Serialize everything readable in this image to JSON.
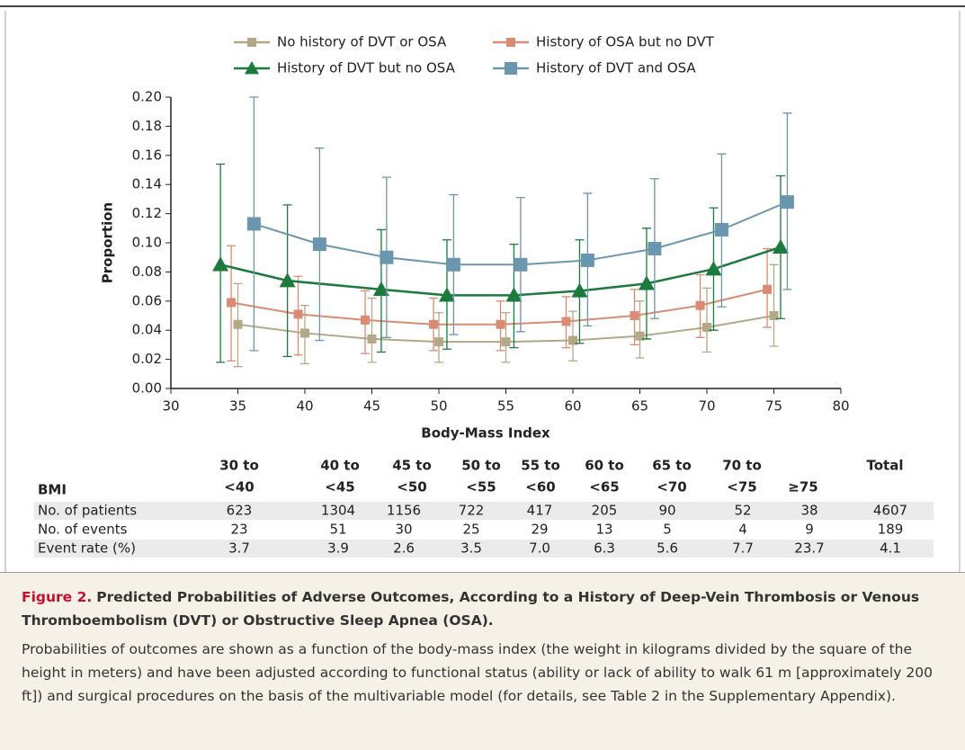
{
  "chart_data": {
    "type": "line",
    "x_label": "Body-Mass Index",
    "y_label": "Proportion",
    "xlim": [
      30,
      80
    ],
    "xticks": [
      30,
      35,
      40,
      45,
      50,
      55,
      60,
      65,
      70,
      75,
      80
    ],
    "ylim": [
      0,
      0.2
    ],
    "yticks": [
      {
        "value": 0,
        "label": "0.00"
      },
      {
        "value": 0.02,
        "label": "0.02"
      },
      {
        "value": 0.04,
        "label": "0.04"
      },
      {
        "value": 0.06,
        "label": "0.06"
      },
      {
        "value": 0.08,
        "label": "0.08"
      },
      {
        "value": 0.1,
        "label": "0.10"
      },
      {
        "value": 0.12,
        "label": "0.12"
      },
      {
        "value": 0.14,
        "label": "0.14"
      },
      {
        "value": 0.16,
        "label": "0.16"
      },
      {
        "value": 0.18,
        "label": "0.18"
      },
      {
        "value": 0.2,
        "label": "0.20"
      }
    ],
    "legend": "top",
    "grid": false,
    "series": [
      {
        "name": "No history of DVT or OSA",
        "color": "#b3a887",
        "marker": "square",
        "x": [
          35,
          40,
          45,
          50,
          55,
          60,
          65,
          70,
          75
        ],
        "values": [
          0.044,
          0.038,
          0.034,
          0.032,
          0.032,
          0.033,
          0.036,
          0.042,
          0.05
        ],
        "lower": [
          0.015,
          0.017,
          0.018,
          0.018,
          0.018,
          0.019,
          0.021,
          0.025,
          0.029
        ],
        "upper": [
          0.072,
          0.057,
          0.062,
          0.052,
          0.052,
          0.053,
          0.06,
          0.069,
          0.085
        ]
      },
      {
        "name": "History of OSA but no DVT",
        "color": "#d98c73",
        "marker": "square",
        "x": [
          34.5,
          39.5,
          44.5,
          49.6,
          54.6,
          59.5,
          64.6,
          69.5,
          74.5
        ],
        "values": [
          0.059,
          0.051,
          0.047,
          0.044,
          0.044,
          0.046,
          0.05,
          0.057,
          0.068
        ],
        "lower": [
          0.019,
          0.023,
          0.024,
          0.026,
          0.026,
          0.028,
          0.03,
          0.035,
          0.042
        ],
        "upper": [
          0.098,
          0.077,
          0.067,
          0.062,
          0.06,
          0.063,
          0.068,
          0.078,
          0.096
        ]
      },
      {
        "name": "History of DVT but no OSA",
        "color": "#1b7a3c",
        "marker": "triangle",
        "x": [
          33.7,
          38.7,
          45.7,
          50.6,
          55.6,
          60.5,
          65.5,
          70.5,
          75.5
        ],
        "values": [
          0.085,
          0.074,
          0.068,
          0.064,
          0.064,
          0.067,
          0.072,
          0.082,
          0.097
        ],
        "lower": [
          0.018,
          0.022,
          0.025,
          0.027,
          0.028,
          0.031,
          0.034,
          0.04,
          0.048
        ],
        "upper": [
          0.154,
          0.126,
          0.109,
          0.102,
          0.099,
          0.102,
          0.11,
          0.124,
          0.146
        ]
      },
      {
        "name": "History of DVT and OSA",
        "color": "#6b96b0",
        "marker": "square",
        "x": [
          36.2,
          41.1,
          46.1,
          51.1,
          56.1,
          61.1,
          66.1,
          71.1,
          76
        ],
        "values": [
          0.113,
          0.099,
          0.09,
          0.085,
          0.085,
          0.088,
          0.096,
          0.109,
          0.128
        ],
        "lower": [
          0.026,
          0.033,
          0.035,
          0.037,
          0.039,
          0.043,
          0.048,
          0.056,
          0.068
        ],
        "upper": [
          0.2,
          0.165,
          0.145,
          0.133,
          0.131,
          0.134,
          0.144,
          0.161,
          0.189
        ]
      }
    ]
  },
  "table": {
    "header": [
      "BMI",
      [
        "30 to",
        "<40"
      ],
      [
        "40 to",
        "<45"
      ],
      [
        "45 to",
        "<50"
      ],
      [
        "50 to",
        "<55"
      ],
      [
        "55 to",
        "<60"
      ],
      [
        "60 to",
        "<65"
      ],
      [
        "65 to",
        "<70"
      ],
      [
        "70 to",
        "<75"
      ],
      [
        "≥75"
      ],
      [
        "Total"
      ]
    ],
    "rows": [
      [
        "No. of patients",
        "623",
        "1304",
        "1156",
        "722",
        "417",
        "205",
        "90",
        "52",
        "38",
        "4607"
      ],
      [
        "No. of events",
        "23",
        "51",
        "30",
        "25",
        "29",
        "13",
        "5",
        "4",
        "9",
        "189"
      ],
      [
        "Event rate (%)",
        "3.7",
        "3.9",
        "2.6",
        "3.5",
        "7.0",
        "6.3",
        "5.6",
        "7.7",
        "23.7",
        "4.1"
      ]
    ]
  },
  "caption": {
    "label": "Figure 2.",
    "title": "Predicted Probabilities of Adverse Outcomes, According to a History of Deep-Vein Thrombosis or Venous Thromboembolism (DVT) or Obstructive Sleep Apnea (OSA).",
    "text": "Probabilities of outcomes are shown as a function of the body-mass index (the weight in kilograms divided by the square of the height in meters) and have been adjusted according to functional status (ability or lack of ability to walk 61 m [approximately 200 ft]) and surgical procedures on the basis of the multivariable model (for details, see Table 2 in the Supplementary Appendix)."
  }
}
